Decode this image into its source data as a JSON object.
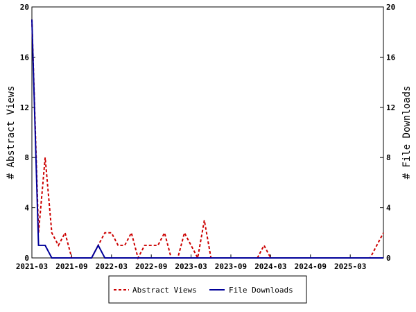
{
  "chart_data": {
    "type": "line",
    "xlabel": "",
    "ylabel_left": "# Abstract Views",
    "ylabel_right": "# File Downloads",
    "ylim_left": [
      0,
      20
    ],
    "ylim_right": [
      0,
      20
    ],
    "y_ticks_left": [
      "0",
      "4",
      "8",
      "12",
      "16",
      "20"
    ],
    "y_ticks_right": [
      "0",
      "4",
      "8",
      "12",
      "16",
      "20"
    ],
    "x_ticks": [
      "2021-03",
      "2021-09",
      "2022-03",
      "2022-09",
      "2023-03",
      "2023-09",
      "2024-03",
      "2024-09",
      "2025-03"
    ],
    "x_month_range": [
      "2021-03",
      "2025-08"
    ],
    "grid": false,
    "legend_position": "bottom",
    "series": [
      {
        "name": "Abstract Views",
        "axis": "left",
        "color": "#cc0000",
        "style": "dashed",
        "points": [
          [
            "2021-03",
            19
          ],
          [
            "2021-04",
            2
          ],
          [
            "2021-05",
            8
          ],
          [
            "2021-06",
            2
          ],
          [
            "2021-07",
            1
          ],
          [
            "2021-08",
            2
          ],
          [
            "2021-09",
            0
          ],
          [
            "2021-10",
            0
          ],
          [
            "2021-11",
            0
          ],
          [
            "2021-12",
            0
          ],
          [
            "2022-01",
            1
          ],
          [
            "2022-02",
            2
          ],
          [
            "2022-03",
            2
          ],
          [
            "2022-04",
            1
          ],
          [
            "2022-05",
            1
          ],
          [
            "2022-06",
            2
          ],
          [
            "2022-07",
            0
          ],
          [
            "2022-08",
            1
          ],
          [
            "2022-09",
            1
          ],
          [
            "2022-10",
            1
          ],
          [
            "2022-11",
            2
          ],
          [
            "2022-12",
            0
          ],
          [
            "2023-01",
            0
          ],
          [
            "2023-02",
            2
          ],
          [
            "2023-03",
            1
          ],
          [
            "2023-04",
            0
          ],
          [
            "2023-05",
            3
          ],
          [
            "2023-06",
            0
          ],
          [
            "2023-07",
            0
          ],
          [
            "2023-08",
            0
          ],
          [
            "2023-09",
            0
          ],
          [
            "2023-10",
            0
          ],
          [
            "2023-11",
            0
          ],
          [
            "2023-12",
            0
          ],
          [
            "2024-01",
            0
          ],
          [
            "2024-02",
            1
          ],
          [
            "2024-03",
            0
          ],
          [
            "2024-04",
            0
          ],
          [
            "2024-05",
            0
          ],
          [
            "2024-06",
            0
          ],
          [
            "2024-07",
            0
          ],
          [
            "2024-08",
            0
          ],
          [
            "2024-09",
            0
          ],
          [
            "2024-10",
            0
          ],
          [
            "2024-11",
            0
          ],
          [
            "2024-12",
            0
          ],
          [
            "2025-01",
            0
          ],
          [
            "2025-02",
            0
          ],
          [
            "2025-03",
            0
          ],
          [
            "2025-04",
            0
          ],
          [
            "2025-05",
            0
          ],
          [
            "2025-06",
            0
          ],
          [
            "2025-07",
            1
          ],
          [
            "2025-08",
            2
          ]
        ]
      },
      {
        "name": "File Downloads",
        "axis": "right",
        "color": "#000099",
        "style": "solid",
        "points": [
          [
            "2021-03",
            19
          ],
          [
            "2021-04",
            1
          ],
          [
            "2021-05",
            1
          ],
          [
            "2021-06",
            0
          ],
          [
            "2021-07",
            0
          ],
          [
            "2021-08",
            0
          ],
          [
            "2021-09",
            0
          ],
          [
            "2021-10",
            0
          ],
          [
            "2021-11",
            0
          ],
          [
            "2021-12",
            0
          ],
          [
            "2022-01",
            1
          ],
          [
            "2022-02",
            0
          ],
          [
            "2022-03",
            0
          ],
          [
            "2022-04",
            0
          ],
          [
            "2022-05",
            0
          ],
          [
            "2022-06",
            0
          ],
          [
            "2022-07",
            0
          ],
          [
            "2022-08",
            0
          ],
          [
            "2022-09",
            0
          ],
          [
            "2022-10",
            0
          ],
          [
            "2022-11",
            0
          ],
          [
            "2022-12",
            0
          ],
          [
            "2023-01",
            0
          ],
          [
            "2023-02",
            0
          ],
          [
            "2023-03",
            0
          ],
          [
            "2023-04",
            0
          ],
          [
            "2023-05",
            0
          ],
          [
            "2023-06",
            0
          ],
          [
            "2023-07",
            0
          ],
          [
            "2023-08",
            0
          ],
          [
            "2023-09",
            0
          ],
          [
            "2023-10",
            0
          ],
          [
            "2023-11",
            0
          ],
          [
            "2023-12",
            0
          ],
          [
            "2024-01",
            0
          ],
          [
            "2024-02",
            0
          ],
          [
            "2024-03",
            0
          ],
          [
            "2024-04",
            0
          ],
          [
            "2024-05",
            0
          ],
          [
            "2024-06",
            0
          ],
          [
            "2024-07",
            0
          ],
          [
            "2024-08",
            0
          ],
          [
            "2024-09",
            0
          ],
          [
            "2024-10",
            0
          ],
          [
            "2024-11",
            0
          ],
          [
            "2024-12",
            0
          ],
          [
            "2025-01",
            0
          ],
          [
            "2025-02",
            0
          ],
          [
            "2025-03",
            0
          ],
          [
            "2025-04",
            0
          ],
          [
            "2025-05",
            0
          ],
          [
            "2025-06",
            0
          ],
          [
            "2025-07",
            0
          ],
          [
            "2025-08",
            0
          ]
        ]
      }
    ]
  }
}
